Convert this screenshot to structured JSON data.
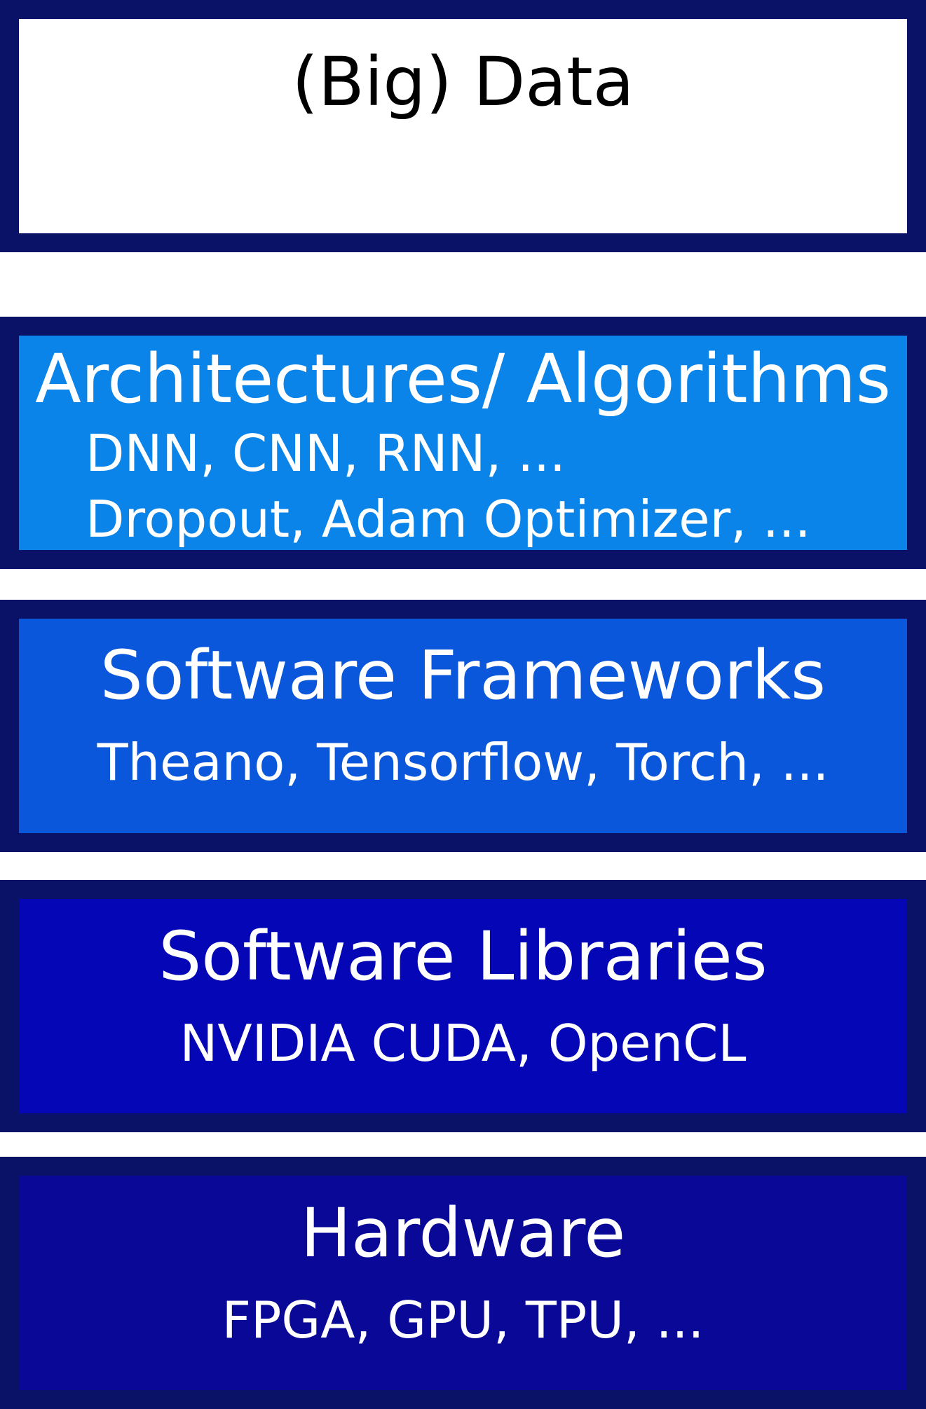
{
  "colors": {
    "border": "#0a1268",
    "data_fill": "#ffffff",
    "architectures_fill": "#0a84e8",
    "frameworks_fill": "#0b57dc",
    "libraries_fill": "#0506b6",
    "hardware_fill": "#0a0896",
    "text_light": "#ffffff",
    "text_dark": "#000000"
  },
  "layers": {
    "data": {
      "title": "(Big) Data"
    },
    "architectures": {
      "title": "Architectures/ Algorithms",
      "lines": [
        "DNN, CNN, RNN, ...",
        "Dropout, Adam Optimizer, ..."
      ]
    },
    "frameworks": {
      "title": "Software Frameworks",
      "lines": [
        "Theano, Tensorflow, Torch, ..."
      ]
    },
    "libraries": {
      "title": "Software Libraries",
      "lines": [
        "NVIDIA CUDA, OpenCL"
      ]
    },
    "hardware": {
      "title": "Hardware",
      "lines": [
        "FPGA, GPU, TPU, ..."
      ]
    }
  }
}
